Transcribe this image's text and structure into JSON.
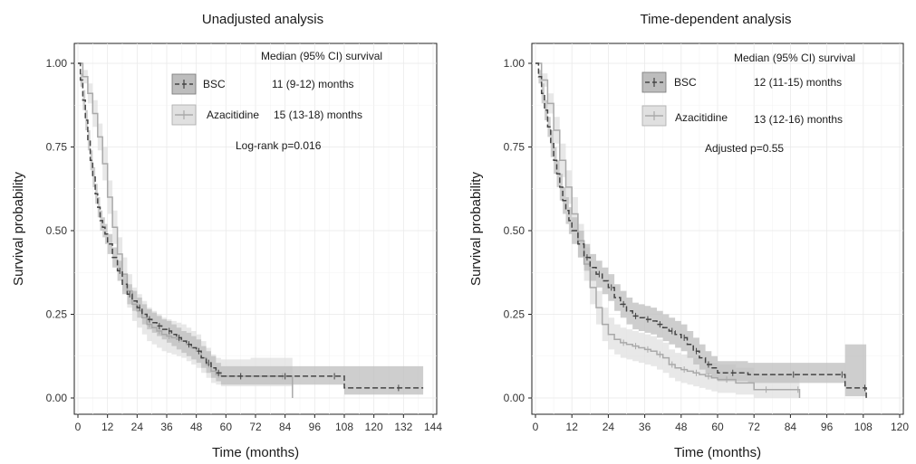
{
  "chart_data": [
    {
      "type": "line",
      "title": "Unadjusted analysis",
      "xlabel": "Time (months)",
      "ylabel": "Survival probability",
      "xlim": [
        0,
        144
      ],
      "ylim": [
        0,
        1
      ],
      "xticks": [
        0,
        12,
        24,
        36,
        48,
        60,
        72,
        84,
        96,
        108,
        120,
        132,
        144
      ],
      "yticks": [
        "0.00",
        "0.25",
        "0.50",
        "0.75",
        "1.00"
      ],
      "grid": true,
      "legend_position": "top",
      "legend_header": "Median (95% CI) survival",
      "annotation": "Log-rank p=0.016",
      "series": [
        {
          "name": "BSC",
          "median_text": "11 (9-12) months",
          "color": "#444444",
          "band_color": "#bdbdbd",
          "dash": "6,3",
          "x": [
            0,
            1,
            2,
            3,
            4,
            5,
            6,
            7,
            8,
            9,
            10,
            11,
            12,
            14,
            16,
            18,
            20,
            22,
            24,
            26,
            28,
            30,
            32,
            34,
            36,
            38,
            40,
            42,
            44,
            46,
            48,
            50,
            52,
            54,
            56,
            58,
            62,
            70,
            80,
            88,
            100,
            108,
            120,
            140
          ],
          "y": [
            1.0,
            0.95,
            0.89,
            0.83,
            0.77,
            0.71,
            0.66,
            0.61,
            0.57,
            0.53,
            0.51,
            0.49,
            0.46,
            0.42,
            0.38,
            0.34,
            0.31,
            0.29,
            0.27,
            0.25,
            0.235,
            0.225,
            0.215,
            0.205,
            0.2,
            0.19,
            0.18,
            0.17,
            0.16,
            0.15,
            0.14,
            0.12,
            0.105,
            0.09,
            0.075,
            0.065,
            0.065,
            0.065,
            0.065,
            0.065,
            0.065,
            0.03,
            0.03,
            0.03
          ],
          "lower": [
            1.0,
            0.93,
            0.86,
            0.8,
            0.74,
            0.68,
            0.63,
            0.58,
            0.54,
            0.5,
            0.48,
            0.46,
            0.43,
            0.39,
            0.35,
            0.31,
            0.28,
            0.26,
            0.24,
            0.22,
            0.205,
            0.195,
            0.185,
            0.175,
            0.165,
            0.155,
            0.145,
            0.135,
            0.125,
            0.115,
            0.105,
            0.09,
            0.075,
            0.06,
            0.05,
            0.04,
            0.04,
            0.04,
            0.04,
            0.04,
            0.04,
            0.01,
            0.01,
            0.01
          ],
          "upper": [
            1.0,
            0.97,
            0.92,
            0.86,
            0.8,
            0.74,
            0.69,
            0.64,
            0.6,
            0.56,
            0.54,
            0.52,
            0.49,
            0.45,
            0.41,
            0.37,
            0.34,
            0.32,
            0.3,
            0.28,
            0.265,
            0.255,
            0.245,
            0.235,
            0.23,
            0.22,
            0.21,
            0.2,
            0.195,
            0.185,
            0.175,
            0.155,
            0.14,
            0.125,
            0.105,
            0.095,
            0.095,
            0.095,
            0.095,
            0.095,
            0.095,
            0.095,
            0.095,
            0.095
          ]
        },
        {
          "name": "Azacitidine",
          "median_text": "15 (13-18) months",
          "color": "#a9a9a9",
          "band_color": "#e0e0e0",
          "dash": "",
          "x": [
            0,
            2,
            4,
            6,
            8,
            10,
            12,
            14,
            16,
            18,
            20,
            22,
            24,
            26,
            28,
            30,
            32,
            34,
            36,
            38,
            40,
            42,
            44,
            46,
            48,
            50,
            52,
            54,
            56,
            58,
            62,
            70,
            80,
            86,
            87
          ],
          "y": [
            1.0,
            0.96,
            0.91,
            0.85,
            0.78,
            0.7,
            0.6,
            0.51,
            0.43,
            0.37,
            0.32,
            0.28,
            0.26,
            0.24,
            0.22,
            0.21,
            0.2,
            0.19,
            0.185,
            0.18,
            0.175,
            0.17,
            0.16,
            0.15,
            0.14,
            0.12,
            0.1,
            0.08,
            0.07,
            0.065,
            0.065,
            0.065,
            0.065,
            0.065,
            0.0
          ],
          "lower": [
            1.0,
            0.94,
            0.88,
            0.81,
            0.74,
            0.65,
            0.55,
            0.46,
            0.38,
            0.32,
            0.27,
            0.23,
            0.21,
            0.19,
            0.17,
            0.16,
            0.15,
            0.14,
            0.135,
            0.13,
            0.125,
            0.12,
            0.11,
            0.1,
            0.09,
            0.075,
            0.06,
            0.045,
            0.04,
            0.035,
            0.035,
            0.035,
            0.035,
            0.035,
            0.0
          ],
          "upper": [
            1.0,
            0.98,
            0.94,
            0.89,
            0.82,
            0.75,
            0.65,
            0.56,
            0.48,
            0.42,
            0.37,
            0.33,
            0.31,
            0.29,
            0.27,
            0.26,
            0.25,
            0.24,
            0.235,
            0.23,
            0.225,
            0.22,
            0.21,
            0.2,
            0.19,
            0.17,
            0.15,
            0.13,
            0.12,
            0.115,
            0.115,
            0.12,
            0.12,
            0.12,
            0.12
          ]
        }
      ]
    },
    {
      "type": "line",
      "title": "Time-dependent analysis",
      "xlabel": "Time (months)",
      "ylabel": "Survival probability",
      "xlim": [
        0,
        120
      ],
      "ylim": [
        0,
        1
      ],
      "xticks": [
        0,
        12,
        24,
        36,
        48,
        60,
        72,
        84,
        96,
        108,
        120
      ],
      "yticks": [
        "0.00",
        "0.25",
        "0.50",
        "0.75",
        "1.00"
      ],
      "grid": true,
      "legend_position": "top",
      "legend_header": "Median (95% CI) survival",
      "annotation": "Adjusted p=0.55",
      "series": [
        {
          "name": "BSC",
          "median_text": "12 (11-15) months",
          "color": "#444444",
          "band_color": "#bdbdbd",
          "dash": "6,3",
          "x": [
            0,
            1,
            2,
            3,
            4,
            5,
            6,
            7,
            8,
            9,
            10,
            11,
            12,
            14,
            16,
            18,
            20,
            22,
            24,
            26,
            28,
            30,
            32,
            34,
            36,
            38,
            40,
            42,
            44,
            46,
            48,
            50,
            52,
            54,
            56,
            58,
            60,
            70,
            80,
            90,
            100,
            102,
            108,
            109
          ],
          "y": [
            1.0,
            0.96,
            0.91,
            0.86,
            0.81,
            0.76,
            0.71,
            0.67,
            0.63,
            0.59,
            0.56,
            0.53,
            0.5,
            0.46,
            0.42,
            0.39,
            0.37,
            0.35,
            0.33,
            0.3,
            0.28,
            0.26,
            0.245,
            0.24,
            0.235,
            0.23,
            0.22,
            0.21,
            0.2,
            0.19,
            0.18,
            0.16,
            0.14,
            0.12,
            0.1,
            0.09,
            0.075,
            0.07,
            0.07,
            0.07,
            0.07,
            0.03,
            0.03,
            0.0
          ],
          "lower": [
            1.0,
            0.94,
            0.88,
            0.83,
            0.78,
            0.72,
            0.67,
            0.63,
            0.59,
            0.55,
            0.52,
            0.49,
            0.46,
            0.42,
            0.38,
            0.35,
            0.33,
            0.31,
            0.29,
            0.26,
            0.24,
            0.22,
            0.205,
            0.2,
            0.195,
            0.19,
            0.18,
            0.17,
            0.16,
            0.15,
            0.14,
            0.12,
            0.1,
            0.085,
            0.07,
            0.06,
            0.05,
            0.045,
            0.045,
            0.045,
            0.045,
            0.005,
            0.005,
            0.005
          ],
          "upper": [
            1.0,
            0.98,
            0.94,
            0.89,
            0.84,
            0.8,
            0.75,
            0.71,
            0.67,
            0.63,
            0.6,
            0.57,
            0.54,
            0.5,
            0.46,
            0.43,
            0.41,
            0.39,
            0.37,
            0.34,
            0.32,
            0.3,
            0.285,
            0.28,
            0.275,
            0.27,
            0.26,
            0.25,
            0.24,
            0.23,
            0.22,
            0.2,
            0.18,
            0.16,
            0.14,
            0.125,
            0.11,
            0.105,
            0.105,
            0.105,
            0.105,
            0.16,
            0.16,
            0.16
          ]
        },
        {
          "name": "Azacitidine",
          "median_text": "13 (12-16) months",
          "color": "#a9a9a9",
          "band_color": "#e0e0e0",
          "dash": "",
          "x": [
            0,
            2,
            4,
            6,
            8,
            10,
            12,
            14,
            16,
            18,
            20,
            22,
            24,
            26,
            28,
            30,
            32,
            34,
            36,
            38,
            40,
            42,
            44,
            46,
            48,
            50,
            52,
            54,
            56,
            58,
            60,
            66,
            72,
            80,
            86,
            87
          ],
          "y": [
            1.0,
            0.95,
            0.88,
            0.8,
            0.71,
            0.63,
            0.55,
            0.47,
            0.4,
            0.33,
            0.27,
            0.22,
            0.19,
            0.175,
            0.165,
            0.16,
            0.155,
            0.15,
            0.145,
            0.14,
            0.13,
            0.12,
            0.1,
            0.09,
            0.085,
            0.08,
            0.075,
            0.07,
            0.065,
            0.06,
            0.055,
            0.045,
            0.025,
            0.025,
            0.025,
            0.0
          ],
          "lower": [
            1.0,
            0.93,
            0.85,
            0.76,
            0.66,
            0.58,
            0.5,
            0.42,
            0.35,
            0.28,
            0.22,
            0.17,
            0.145,
            0.13,
            0.12,
            0.115,
            0.11,
            0.105,
            0.1,
            0.095,
            0.085,
            0.075,
            0.06,
            0.05,
            0.045,
            0.04,
            0.035,
            0.03,
            0.025,
            0.02,
            0.015,
            0.01,
            0.0,
            0.0,
            0.0,
            0.0
          ],
          "upper": [
            1.0,
            0.97,
            0.91,
            0.84,
            0.76,
            0.68,
            0.6,
            0.52,
            0.45,
            0.38,
            0.32,
            0.27,
            0.24,
            0.22,
            0.21,
            0.205,
            0.2,
            0.195,
            0.19,
            0.185,
            0.175,
            0.165,
            0.145,
            0.135,
            0.13,
            0.125,
            0.12,
            0.115,
            0.11,
            0.105,
            0.1,
            0.09,
            0.07,
            0.07,
            0.07,
            0.07
          ]
        }
      ]
    }
  ]
}
